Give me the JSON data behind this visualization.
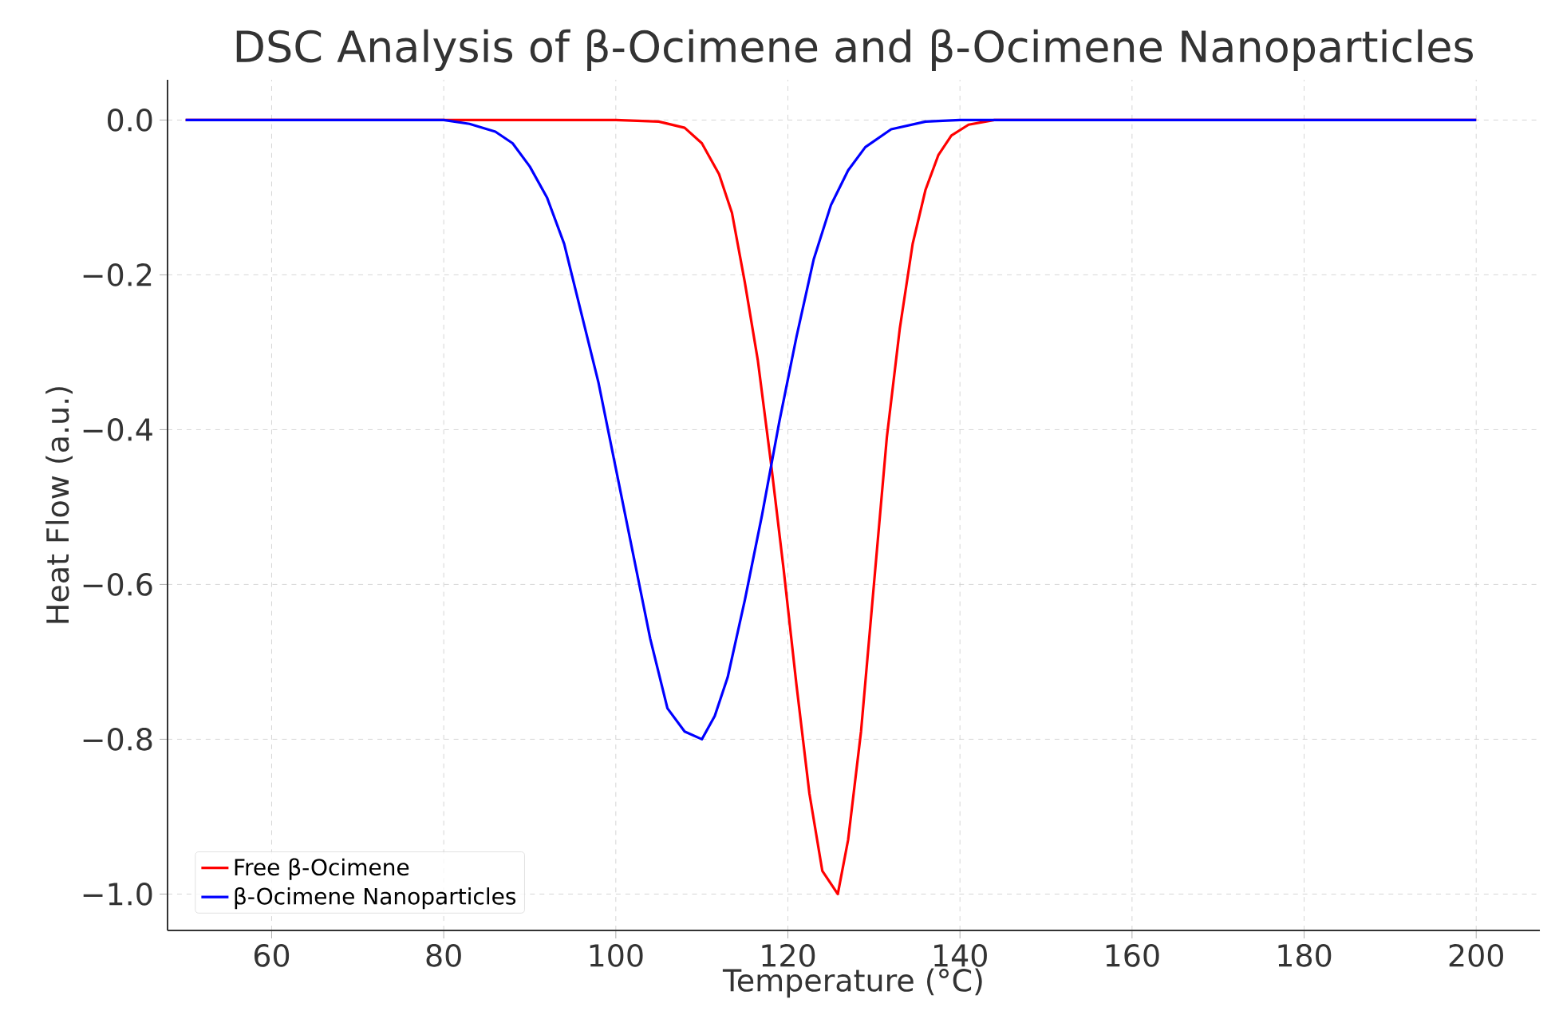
{
  "chart_data": {
    "type": "line",
    "title": "DSC Analysis of β-Ocimene and β-Ocimene Nanoparticles",
    "xlabel": "Temperature (°C)",
    "ylabel": "Heat Flow (a.u.)",
    "xlim": [
      47.9,
      207.4
    ],
    "ylim": [
      -1.047,
      0.052
    ],
    "xticks": [
      60,
      80,
      100,
      120,
      140,
      160,
      180,
      200
    ],
    "yticks": [
      {
        "value": -1.0,
        "label": "−1.0"
      },
      {
        "value": -0.8,
        "label": "−0.8"
      },
      {
        "value": -0.6,
        "label": "−0.6"
      },
      {
        "value": -0.4,
        "label": "−0.4"
      },
      {
        "value": -0.2,
        "label": "−0.2"
      },
      {
        "value": 0.0,
        "label": "0.0"
      }
    ],
    "grid": true,
    "legend": "bottom left",
    "marker": "none",
    "line_style": "solid",
    "series": [
      {
        "name": "Free β-Ocimene",
        "color": "#ff0000",
        "x": [
          50,
          100,
          105,
          108,
          110,
          112,
          113.5,
          115,
          116.5,
          118,
          119.5,
          121,
          122.5,
          124,
          125.8,
          127,
          128.5,
          130,
          131.5,
          133,
          134.5,
          136,
          137.5,
          139,
          141,
          144,
          200
        ],
        "values": [
          0,
          0,
          -0.002,
          -0.01,
          -0.03,
          -0.07,
          -0.12,
          -0.21,
          -0.31,
          -0.44,
          -0.58,
          -0.73,
          -0.87,
          -0.97,
          -1.0,
          -0.93,
          -0.79,
          -0.6,
          -0.41,
          -0.27,
          -0.16,
          -0.09,
          -0.045,
          -0.02,
          -0.006,
          0,
          0
        ]
      },
      {
        "name": "β-Ocimene Nanoparticles",
        "color": "#0000ff",
        "x": [
          50,
          80,
          83,
          86,
          88,
          90,
          92,
          94,
          96,
          98,
          100,
          102,
          104,
          106,
          108,
          110,
          111.5,
          113,
          115,
          117,
          119,
          121,
          123,
          125,
          127,
          129,
          132,
          136,
          140,
          200
        ],
        "values": [
          0,
          0,
          -0.005,
          -0.015,
          -0.03,
          -0.06,
          -0.1,
          -0.16,
          -0.25,
          -0.34,
          -0.45,
          -0.56,
          -0.67,
          -0.76,
          -0.79,
          -0.8,
          -0.77,
          -0.72,
          -0.62,
          -0.51,
          -0.39,
          -0.28,
          -0.18,
          -0.11,
          -0.065,
          -0.035,
          -0.012,
          -0.002,
          0,
          0
        ]
      }
    ]
  }
}
